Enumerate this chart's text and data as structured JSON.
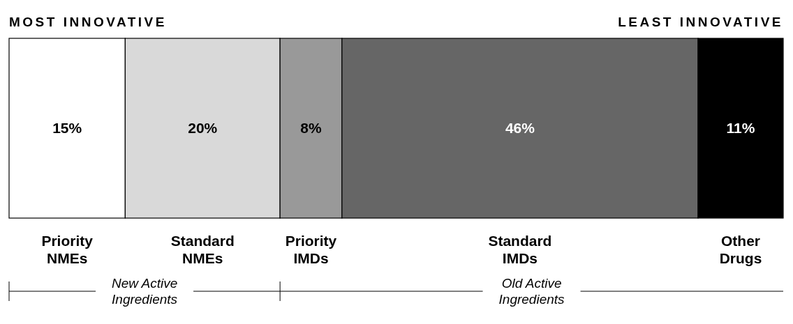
{
  "chart_data": {
    "type": "bar",
    "orientation": "horizontal",
    "stacked": true,
    "categories": [
      null
    ],
    "xlim": [
      0,
      100
    ],
    "series": [
      {
        "name": "Priority NMEs",
        "color": "#ffffff",
        "values": [
          15
        ],
        "value_labels": [
          "15%"
        ]
      },
      {
        "name": "Standard NMEs",
        "color": "#d9d9d9",
        "values": [
          20
        ],
        "value_labels": [
          "20%"
        ]
      },
      {
        "name": "Priority IMDs",
        "color": "#999999",
        "values": [
          8
        ],
        "value_labels": [
          "8%"
        ]
      },
      {
        "name": "Standard IMDs",
        "color": "#666666",
        "values": [
          46
        ],
        "value_labels": [
          "46%"
        ]
      },
      {
        "name": "Other Drugs",
        "color": "#000000",
        "values": [
          11
        ],
        "value_labels": [
          "11%"
        ]
      }
    ],
    "annotations": [
      "MOST INNOVATIVE",
      "LEAST INNOVATIVE",
      "New Active Ingredients",
      "Old Active Ingredients"
    ]
  }
}
